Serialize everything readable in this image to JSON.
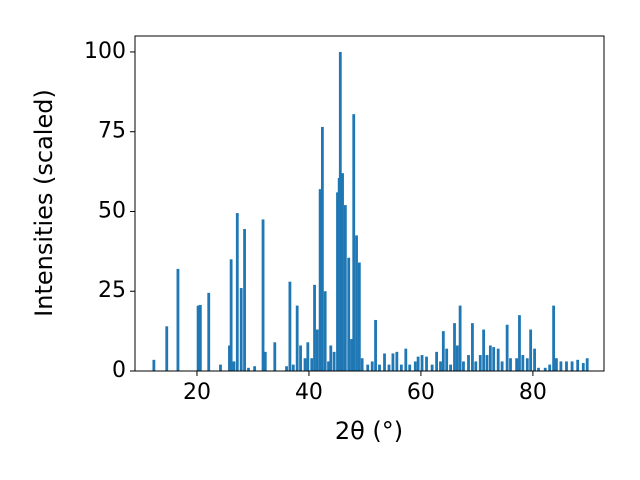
{
  "chart_data": {
    "type": "bar",
    "xlabel": "2θ (°)",
    "ylabel": "Intensities (scaled)",
    "color": "#1f77b4",
    "xlim": [
      8.93,
      92.7
    ],
    "ylim": [
      0,
      105
    ],
    "xticks": [
      20,
      40,
      60,
      80
    ],
    "yticks": [
      0,
      25,
      50,
      75,
      100
    ],
    "grid": false,
    "x": [
      12.3,
      14.6,
      16.6,
      20.2,
      20.6,
      22.1,
      24.2,
      25.8,
      26.1,
      26.6,
      27.2,
      27.9,
      28.5,
      29.2,
      30.3,
      31.8,
      32.2,
      33.9,
      36.0,
      36.6,
      37.2,
      37.9,
      38.5,
      39.3,
      39.8,
      40.5,
      41.0,
      41.5,
      42.0,
      42.4,
      42.9,
      43.5,
      43.9,
      44.5,
      45.1,
      45.4,
      45.6,
      46.0,
      46.5,
      47.1,
      47.6,
      48.0,
      48.5,
      49.0,
      49.5,
      50.5,
      51.3,
      51.9,
      52.6,
      53.5,
      54.3,
      55.0,
      55.7,
      56.5,
      57.3,
      58.0,
      59.0,
      59.5,
      60.2,
      61.0,
      62.0,
      62.8,
      63.5,
      64.0,
      64.6,
      65.3,
      66.0,
      66.5,
      67.0,
      67.6,
      68.5,
      69.2,
      69.8,
      70.6,
      71.2,
      71.8,
      72.4,
      73.0,
      73.8,
      74.5,
      75.4,
      76.0,
      77.1,
      77.6,
      78.2,
      79.0,
      79.6,
      80.3,
      81.0,
      82.2,
      83.0,
      83.7,
      84.2,
      85.0,
      86.0,
      87.0,
      88.0,
      89.0,
      89.7
    ],
    "values": [
      3.5,
      14,
      32,
      20.5,
      20.7,
      24.5,
      2,
      8,
      35,
      3,
      49.5,
      26,
      44.5,
      1,
      1.5,
      47.5,
      6,
      9,
      1.5,
      28,
      2,
      20.5,
      8,
      4,
      9,
      4,
      27,
      13,
      57,
      76.5,
      25,
      3,
      8,
      6,
      56,
      60.5,
      100,
      62,
      52,
      35.5,
      10,
      80.5,
      42.5,
      34,
      4,
      2,
      3,
      16,
      2,
      5.5,
      2,
      5.5,
      6,
      2,
      7,
      2,
      3,
      4.5,
      5,
      4.5,
      2,
      6,
      3,
      12.5,
      7,
      2,
      15,
      8,
      20.5,
      3,
      5,
      15,
      3,
      5,
      13,
      5,
      8,
      7.5,
      7,
      3,
      14.5,
      4,
      4,
      17.5,
      5,
      4,
      13,
      7,
      1,
      1,
      2,
      20.5,
      4,
      3,
      3,
      3,
      3.5,
      2.5,
      4
    ]
  }
}
